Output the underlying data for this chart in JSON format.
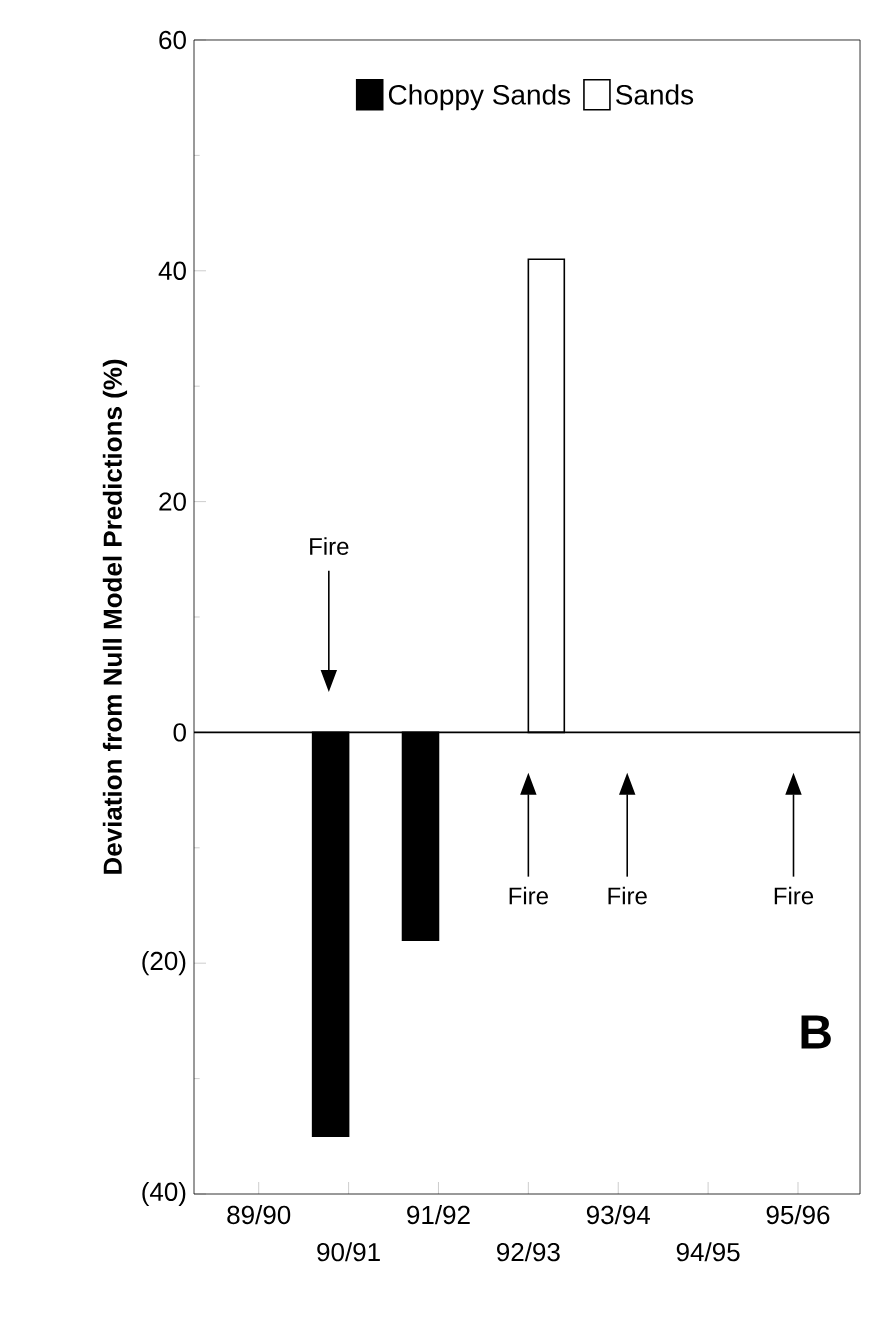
{
  "chart_data": {
    "type": "bar",
    "ylabel": "Deviation from Null Model Predictions (%)",
    "categories": [
      "89/90",
      "90/91",
      "91/92",
      "92/93",
      "93/94",
      "94/95",
      "95/96"
    ],
    "series": [
      {
        "name": "Choppy Sands",
        "color": "#000000",
        "values": [
          null,
          -35,
          -18,
          null,
          null,
          null,
          null
        ]
      },
      {
        "name": "Sands",
        "color": "#ffffff",
        "values": [
          null,
          null,
          null,
          41,
          null,
          null,
          null
        ]
      }
    ],
    "ylim": [
      -40,
      60
    ],
    "yticks": [
      60,
      40,
      20,
      0,
      {
        "value": -20,
        "label": "(20)"
      },
      {
        "value": -40,
        "label": "(40)"
      }
    ],
    "ref_lines": [
      {
        "axis": "y",
        "value": 0
      }
    ],
    "annotations": [
      "Fire",
      "Fire",
      "Fire",
      "Fire",
      "B"
    ],
    "legend": "top",
    "grid": false
  }
}
